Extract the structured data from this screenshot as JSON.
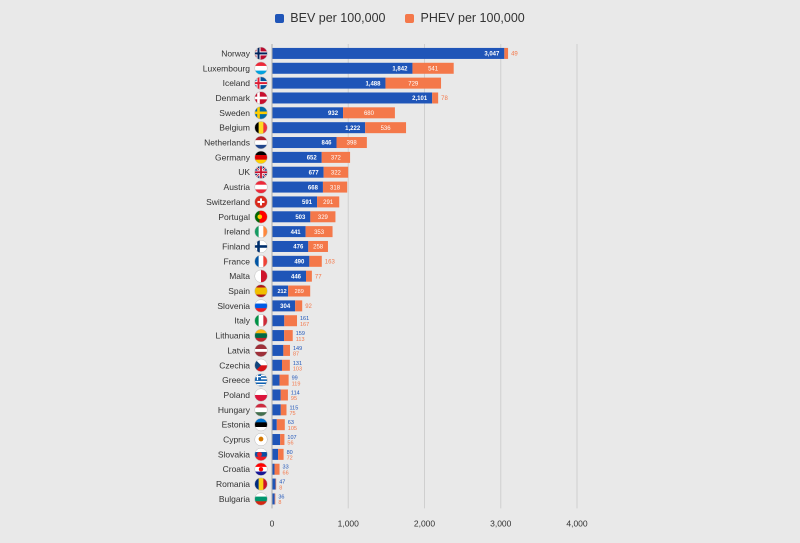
{
  "legend": {
    "bev_label": "BEV per 100,000",
    "phev_label": "PHEV per 100,000"
  },
  "colors": {
    "bev": "#1f55b8",
    "phev": "#f4784a",
    "background": "#e9e9e9",
    "grid": "#cfcfcf",
    "text": "#333333"
  },
  "chart_data": {
    "type": "bar",
    "orientation": "horizontal",
    "stacked": true,
    "categories": [
      "Norway",
      "Luxembourg",
      "Iceland",
      "Denmark",
      "Sweden",
      "Belgium",
      "Netherlands",
      "Germany",
      "UK",
      "Austria",
      "Switzerland",
      "Portugal",
      "Ireland",
      "Finland",
      "France",
      "Malta",
      "Spain",
      "Slovenia",
      "Italy",
      "Lithuania",
      "Latvia",
      "Czechia",
      "Greece",
      "Poland",
      "Hungary",
      "Estonia",
      "Cyprus",
      "Slovakia",
      "Croatia",
      "Romania",
      "Bulgaria"
    ],
    "series": [
      {
        "name": "BEV per 100,000",
        "values": [
          3047,
          1842,
          1488,
          2101,
          932,
          1222,
          846,
          652,
          677,
          668,
          591,
          503,
          441,
          476,
          490,
          446,
          212,
          304,
          161,
          159,
          149,
          131,
          99,
          114,
          115,
          63,
          107,
          80,
          33,
          47,
          36
        ],
        "value_labels": [
          "3,047",
          "1,842",
          "1,488",
          "2,101",
          "932",
          "1,222",
          "846",
          "652",
          "677",
          "668",
          "591",
          "503",
          "441",
          "476",
          "490",
          "446",
          "212",
          "304",
          "161",
          "159",
          "149",
          "131",
          "99",
          "114",
          "115",
          "63",
          "107",
          "80",
          "33",
          "47",
          "36"
        ]
      },
      {
        "name": "PHEV per 100,000",
        "values": [
          49,
          541,
          729,
          78,
          680,
          536,
          398,
          372,
          322,
          318,
          291,
          329,
          353,
          258,
          163,
          77,
          289,
          92,
          167,
          113,
          87,
          103,
          119,
          95,
          75,
          105,
          56,
          72,
          66,
          8,
          8
        ],
        "value_labels": [
          "49",
          "541",
          "729",
          "78",
          "680",
          "536",
          "398",
          "372",
          "322",
          "318",
          "291",
          "329",
          "353",
          "258",
          "163",
          "77",
          "289",
          "92",
          "167",
          "113",
          "87",
          "103",
          "119",
          "95",
          "75",
          "105",
          "56",
          "72",
          "66",
          "8",
          "8"
        ]
      }
    ],
    "xlim": [
      0,
      4000
    ],
    "xticks": [
      0,
      1000,
      2000,
      3000,
      4000
    ],
    "xtick_labels": [
      "0",
      "1,000",
      "2,000",
      "3,000",
      "4,000"
    ],
    "grid": true,
    "legend_position": "top-center",
    "flag_icons": [
      "norway-flag-icon",
      "luxembourg-flag-icon",
      "iceland-flag-icon",
      "denmark-flag-icon",
      "sweden-flag-icon",
      "belgium-flag-icon",
      "netherlands-flag-icon",
      "germany-flag-icon",
      "uk-flag-icon",
      "austria-flag-icon",
      "switzerland-flag-icon",
      "portugal-flag-icon",
      "ireland-flag-icon",
      "finland-flag-icon",
      "france-flag-icon",
      "malta-flag-icon",
      "spain-flag-icon",
      "slovenia-flag-icon",
      "italy-flag-icon",
      "lithuania-flag-icon",
      "latvia-flag-icon",
      "czechia-flag-icon",
      "greece-flag-icon",
      "poland-flag-icon",
      "hungary-flag-icon",
      "estonia-flag-icon",
      "cyprus-flag-icon",
      "slovakia-flag-icon",
      "croatia-flag-icon",
      "romania-flag-icon",
      "bulgaria-flag-icon"
    ]
  }
}
